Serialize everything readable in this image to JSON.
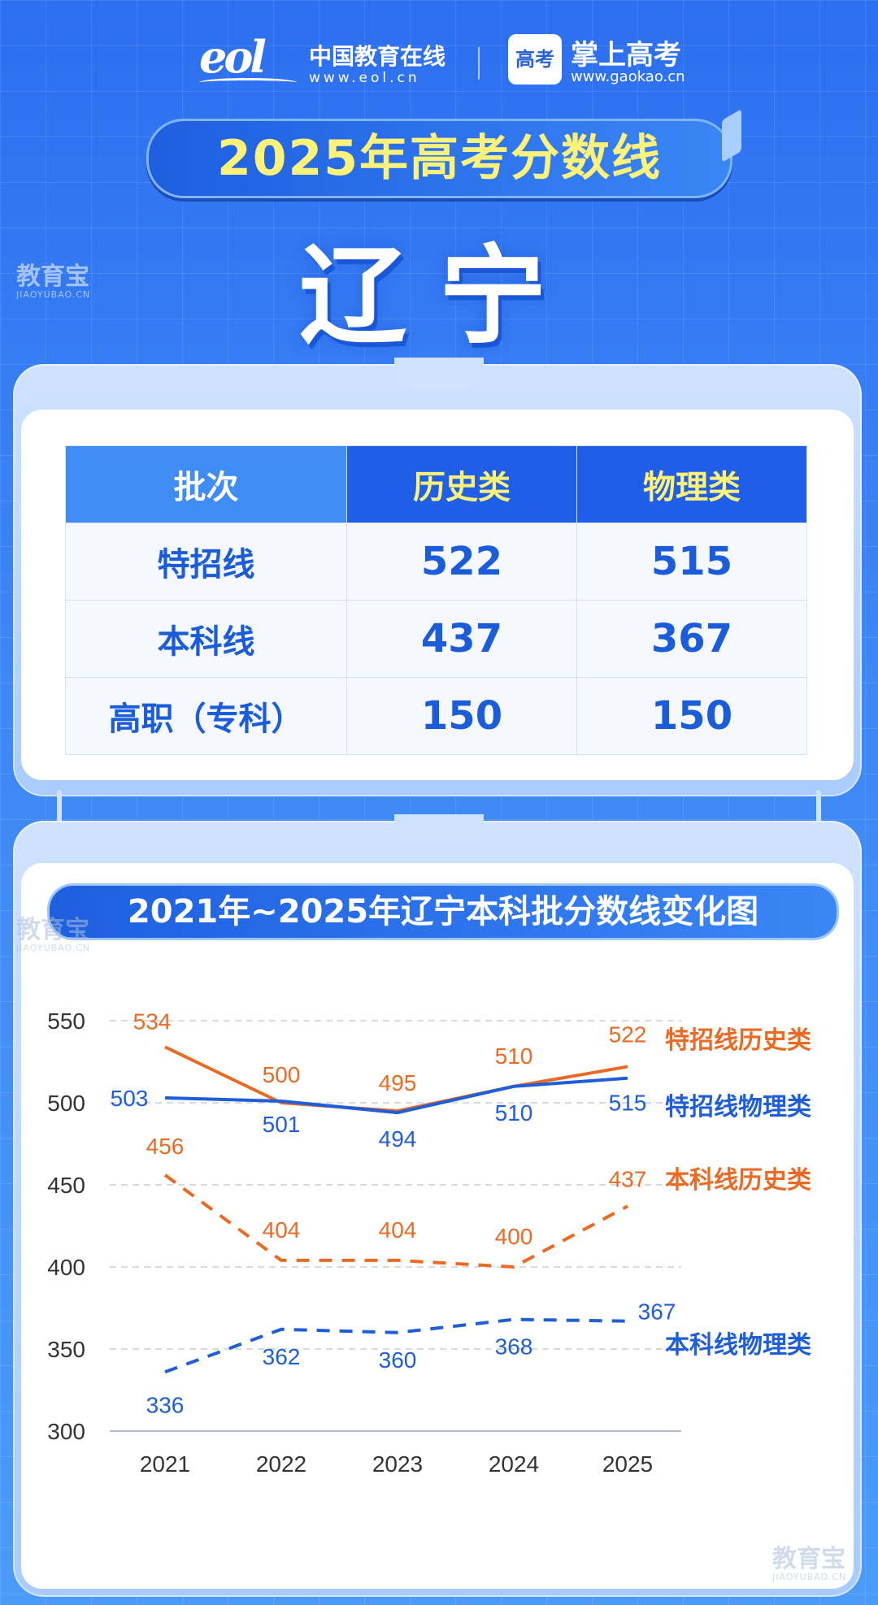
{
  "header": {
    "eol_mark": "eol",
    "eol_name": "中国教育在线",
    "eol_url": "www.eol.cn",
    "gaokao_icon": "高考",
    "gaokao_name": "掌上高考",
    "gaokao_url": "www.gaokao.cn"
  },
  "title": "2025年高考分数线",
  "province": "辽宁",
  "watermark": {
    "cn": "教育宝",
    "en": "JIAOYUBAO.CN"
  },
  "table": {
    "headers": [
      "批次",
      "历史类",
      "物理类"
    ],
    "rows": [
      {
        "label": "特招线",
        "history": "522",
        "physics": "515"
      },
      {
        "label": "本科线",
        "history": "437",
        "physics": "367"
      },
      {
        "label": "高职（专科）",
        "history": "150",
        "physics": "150"
      }
    ]
  },
  "chart_data": {
    "type": "line",
    "title": "2021年~2025年辽宁本科批分数线变化图",
    "x": [
      "2021",
      "2022",
      "2023",
      "2024",
      "2025"
    ],
    "ylim": [
      300,
      550
    ],
    "yticks": [
      550,
      500,
      450,
      400,
      350,
      300
    ],
    "grid": true,
    "legend": "right, inline labels",
    "series": [
      {
        "name": "特招线历史类",
        "values": [
          534,
          500,
          495,
          510,
          522
        ],
        "color": "#ea6a24",
        "dash": false
      },
      {
        "name": "特招线物理类",
        "values": [
          503,
          501,
          494,
          510,
          515
        ],
        "color": "#1f5ed9",
        "dash": false
      },
      {
        "name": "本科线历史类",
        "values": [
          456,
          404,
          404,
          400,
          437
        ],
        "color": "#ea6a24",
        "dash": true
      },
      {
        "name": "本科线物理类",
        "values": [
          336,
          362,
          360,
          368,
          367
        ],
        "color": "#1f5ed9",
        "dash": true
      }
    ]
  }
}
